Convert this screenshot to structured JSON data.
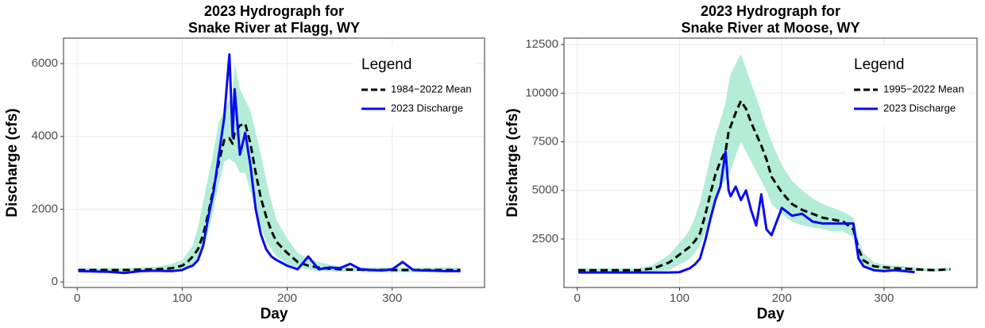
{
  "chart_data": [
    {
      "type": "line",
      "title": [
        "2023 Hydrograph for",
        "Snake River at Flagg, WY"
      ],
      "xlabel": "Day",
      "ylabel": "Discharge (cfs)",
      "x": [
        1,
        15,
        30,
        45,
        60,
        75,
        90,
        100,
        105,
        110,
        115,
        120,
        125,
        130,
        135,
        140,
        145,
        148,
        150,
        155,
        160,
        165,
        170,
        175,
        180,
        185,
        190,
        200,
        210,
        220,
        230,
        240,
        250,
        260,
        270,
        275,
        280,
        290,
        300,
        310,
        320,
        330,
        340,
        350,
        365
      ],
      "xlim": [
        -13,
        388
      ],
      "ylim": [
        -150,
        6700
      ],
      "xticks": [
        0,
        100,
        200,
        300
      ],
      "yticks": [
        0,
        2000,
        4000,
        6000
      ],
      "grid": true,
      "legend": "top-right",
      "legend_title": "Legend",
      "band": {
        "color": "#a6e9d0",
        "lower": [
          280,
          280,
          270,
          260,
          270,
          280,
          290,
          330,
          380,
          450,
          600,
          900,
          1400,
          2000,
          2700,
          3300,
          3400,
          3300,
          3300,
          3000,
          3000,
          2500,
          2000,
          1500,
          1100,
          900,
          700,
          500,
          400,
          340,
          300,
          290,
          280,
          280,
          280,
          270,
          270,
          270,
          270,
          270,
          270,
          270,
          270,
          270,
          270
        ],
        "upper": [
          380,
          380,
          380,
          380,
          400,
          420,
          500,
          600,
          800,
          1000,
          1500,
          2200,
          2900,
          3600,
          4400,
          4700,
          5000,
          5200,
          6000,
          5300,
          5000,
          4700,
          4100,
          3500,
          2800,
          2200,
          1700,
          1200,
          800,
          650,
          550,
          480,
          440,
          420,
          410,
          400,
          400,
          400,
          400,
          400,
          400,
          400,
          400,
          400,
          400
        ]
      },
      "series": [
        {
          "name": "1984−2022 Mean",
          "color": "#000000",
          "linestyle": "dashed",
          "values": [
            330,
            330,
            330,
            330,
            340,
            350,
            380,
            450,
            550,
            700,
            900,
            1300,
            1900,
            2600,
            3300,
            3900,
            3950,
            3800,
            4100,
            4300,
            4350,
            3800,
            3000,
            2300,
            1800,
            1400,
            1100,
            800,
            550,
            450,
            400,
            370,
            350,
            340,
            340,
            330,
            330,
            330,
            330,
            330,
            330,
            330,
            330,
            330,
            330
          ]
        },
        {
          "name": "2023 Discharge",
          "color": "#0a0aee",
          "linestyle": "solid",
          "values": [
            300,
            290,
            280,
            250,
            300,
            310,
            300,
            330,
            400,
            450,
            600,
            1000,
            1800,
            2500,
            3500,
            4500,
            6250,
            4000,
            5300,
            3500,
            4100,
            3200,
            2000,
            1300,
            900,
            700,
            600,
            450,
            350,
            700,
            350,
            400,
            380,
            500,
            350,
            340,
            330,
            320,
            350,
            550,
            330,
            320,
            310,
            300,
            300
          ]
        }
      ]
    },
    {
      "type": "line",
      "title": [
        "2023 Hydrograph for",
        "Snake River at Moose, WY"
      ],
      "xlabel": "Day",
      "ylabel": "Discharge (cfs)",
      "x": [
        1,
        15,
        30,
        45,
        60,
        75,
        90,
        100,
        105,
        110,
        115,
        120,
        125,
        130,
        135,
        140,
        145,
        148,
        150,
        155,
        160,
        165,
        170,
        175,
        180,
        185,
        190,
        200,
        210,
        220,
        230,
        240,
        250,
        260,
        270,
        275,
        280,
        290,
        300,
        310,
        320,
        330,
        340,
        350,
        365
      ],
      "xlim": [
        -13,
        391
      ],
      "ylim": [
        10,
        12830
      ],
      "xticks": [
        0,
        100,
        200,
        300
      ],
      "yticks": [
        2500,
        5000,
        7500,
        10000,
        12500
      ],
      "grid": true,
      "legend": "top-right",
      "legend_title": "Legend",
      "band": {
        "color": "#a6e9d0",
        "lower": [
          800,
          800,
          800,
          800,
          800,
          850,
          900,
          1200,
          1300,
          1500,
          1800,
          2200,
          2800,
          3700,
          4500,
          5200,
          5500,
          5800,
          6000,
          6800,
          7500,
          7000,
          6500,
          6000,
          5500,
          5000,
          4300,
          3800,
          3400,
          3200,
          3100,
          3000,
          2900,
          2900,
          2600,
          1500,
          1200,
          950,
          900,
          900,
          880,
          870,
          850,
          830,
          850
        ],
        "upper": [
          1000,
          1000,
          1000,
          1000,
          1000,
          1200,
          1700,
          2300,
          2600,
          3000,
          3600,
          4400,
          5500,
          6700,
          7800,
          8600,
          9500,
          10500,
          11000,
          11500,
          12000,
          11300,
          10500,
          9800,
          9000,
          8200,
          7500,
          6300,
          5500,
          5000,
          4600,
          4300,
          4100,
          3900,
          3600,
          2500,
          1800,
          1300,
          1200,
          1150,
          1100,
          1050,
          1000,
          980,
          1050
        ]
      },
      "series": [
        {
          "name": "1995−2022 Mean",
          "color": "#000000",
          "linestyle": "dashed",
          "values": [
            900,
            900,
            900,
            900,
            900,
            1000,
            1300,
            1700,
            1900,
            2100,
            2400,
            2800,
            3700,
            4800,
            5800,
            6500,
            7000,
            8000,
            8300,
            9000,
            9600,
            9200,
            8500,
            7900,
            7300,
            6600,
            5700,
            4900,
            4300,
            4000,
            3800,
            3600,
            3500,
            3400,
            3000,
            2000,
            1400,
            1100,
            1050,
            1000,
            980,
            950,
            920,
            900,
            950
          ]
        },
        {
          "name": "2023 Discharge",
          "color": "#0a0aee",
          "linestyle": "solid",
          "values": [
            780,
            780,
            780,
            780,
            780,
            780,
            780,
            800,
            900,
            1000,
            1200,
            1500,
            2400,
            3500,
            4500,
            5200,
            7000,
            5000,
            4700,
            5200,
            4500,
            5000,
            4000,
            3200,
            4800,
            3000,
            2700,
            4100,
            3700,
            3800,
            3400,
            3300,
            3300,
            3300,
            3300,
            1500,
            1100,
            900,
            850,
            900,
            850,
            800,
            null,
            null,
            null
          ]
        }
      ]
    }
  ]
}
